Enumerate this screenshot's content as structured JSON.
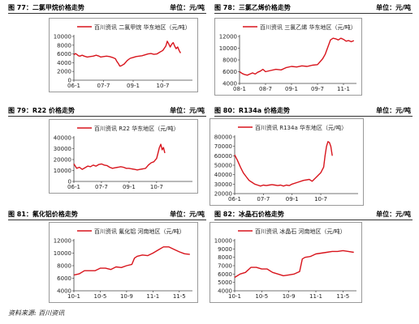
{
  "unit_text": "单位：元/吨",
  "colors": {
    "line": "#d8141c",
    "axis": "#444444",
    "text": "#222222"
  },
  "source": "资料来源: 百川资讯",
  "chart_data": [
    {
      "type": "line",
      "figure_title": "图 77：二氯甲烷价格走势",
      "legend": "百川资讯 二氯甲烷 华东地区（元/吨）",
      "ylim": [
        0,
        10000
      ],
      "yticks": [
        0,
        2000,
        4000,
        6000,
        8000,
        10000
      ],
      "xlim": [
        0,
        4
      ],
      "xticks": [
        0,
        1,
        2,
        3
      ],
      "xtick_labels": [
        "06-1",
        "07-7",
        "09-1",
        "10-7"
      ],
      "x": [
        0,
        0.05,
        0.1,
        0.15,
        0.2,
        0.28,
        0.35,
        0.45,
        0.55,
        0.65,
        0.75,
        0.85,
        0.9,
        1.0,
        1.1,
        1.2,
        1.3,
        1.4,
        1.45,
        1.5,
        1.55,
        1.6,
        1.7,
        1.8,
        1.9,
        2.0,
        2.1,
        2.2,
        2.3,
        2.4,
        2.5,
        2.6,
        2.7,
        2.8,
        2.9,
        3.0,
        3.1,
        3.15,
        3.2,
        3.25,
        3.3,
        3.35,
        3.4,
        3.45,
        3.5,
        3.55,
        3.6
      ],
      "y": [
        5800,
        6100,
        5900,
        5600,
        5500,
        5700,
        5500,
        5300,
        5400,
        5500,
        5700,
        5500,
        5300,
        5400,
        5500,
        5400,
        5200,
        4900,
        4300,
        3800,
        3200,
        3300,
        3700,
        4500,
        5000,
        5200,
        5400,
        5500,
        5600,
        5800,
        6000,
        6100,
        5900,
        6000,
        6400,
        6800,
        7800,
        8900,
        8300,
        7600,
        8200,
        8600,
        7800,
        7200,
        7600,
        6800,
        6200
      ]
    },
    {
      "type": "line",
      "figure_title": "图 78：三氯乙烯价格走势",
      "legend": "百川资讯 三氯乙烯 华东地区（元/吨）",
      "ylim": [
        4000,
        12000
      ],
      "yticks": [
        4000,
        6000,
        8000,
        10000,
        12000
      ],
      "xlim": [
        0,
        4.5
      ],
      "xticks": [
        0,
        1,
        2,
        3,
        4
      ],
      "xtick_labels": [
        "08-1",
        "08-7",
        "09-1",
        "09-7",
        "11-1"
      ],
      "x": [
        0,
        0.1,
        0.2,
        0.3,
        0.4,
        0.5,
        0.6,
        0.7,
        0.8,
        0.9,
        1.0,
        1.2,
        1.4,
        1.6,
        1.8,
        2.0,
        2.2,
        2.4,
        2.6,
        2.8,
        3.0,
        3.2,
        3.3,
        3.4,
        3.5,
        3.6,
        3.7,
        3.8,
        3.9,
        4.0,
        4.1,
        4.2,
        4.3,
        4.4
      ],
      "y": [
        6000,
        5700,
        5500,
        5400,
        5600,
        5800,
        5600,
        5900,
        6100,
        6400,
        6000,
        6200,
        6400,
        6300,
        6700,
        6900,
        6800,
        7000,
        6900,
        7100,
        7200,
        8200,
        9000,
        10200,
        11400,
        11700,
        11600,
        11400,
        11700,
        11500,
        11200,
        11300,
        11100,
        11300
      ]
    },
    {
      "type": "line",
      "figure_title": "图 79：R22 价格走势",
      "legend": "百川资讯 R22 华东地区（元/吨）",
      "ylim": [
        0,
        40000
      ],
      "yticks": [
        0,
        10000,
        20000,
        30000,
        40000
      ],
      "xlim": [
        0,
        4.3
      ],
      "xticks": [
        0,
        1,
        2,
        3
      ],
      "xtick_labels": [
        "06-1",
        "07-7",
        "09-1",
        "10-7"
      ],
      "x": [
        0,
        0.1,
        0.2,
        0.3,
        0.4,
        0.5,
        0.6,
        0.7,
        0.8,
        0.9,
        1.0,
        1.1,
        1.2,
        1.3,
        1.4,
        1.5,
        1.6,
        1.7,
        1.8,
        1.9,
        2.0,
        2.1,
        2.2,
        2.3,
        2.4,
        2.5,
        2.6,
        2.7,
        2.8,
        2.9,
        3.0,
        3.05,
        3.1,
        3.15,
        3.2,
        3.25,
        3.3
      ],
      "y": [
        16000,
        12000,
        13000,
        11000,
        12500,
        14000,
        13500,
        15000,
        14000,
        15500,
        16000,
        15000,
        14500,
        13000,
        12000,
        12500,
        13000,
        13500,
        13000,
        12000,
        12000,
        11500,
        11000,
        10500,
        11000,
        11500,
        12000,
        15000,
        17000,
        18000,
        21000,
        26000,
        31000,
        34000,
        29000,
        31000,
        26000
      ]
    },
    {
      "type": "line",
      "figure_title": "图 80：R134a 价格走势",
      "legend": "百川资讯 R134a 华东地区（元/吨）",
      "ylim": [
        20000,
        80000
      ],
      "yticks": [
        20000,
        30000,
        40000,
        50000,
        60000,
        70000,
        80000
      ],
      "xlim": [
        0,
        4.3
      ],
      "xticks": [
        0,
        1,
        2,
        3
      ],
      "xtick_labels": [
        "06-1",
        "07-7",
        "09-1",
        "10-7"
      ],
      "x": [
        0,
        0.1,
        0.2,
        0.3,
        0.4,
        0.5,
        0.6,
        0.7,
        0.8,
        0.9,
        1.0,
        1.1,
        1.2,
        1.3,
        1.4,
        1.5,
        1.6,
        1.7,
        1.8,
        1.9,
        2.0,
        2.2,
        2.4,
        2.6,
        2.7,
        2.8,
        2.9,
        3.0,
        3.1,
        3.15,
        3.2,
        3.25,
        3.3,
        3.35,
        3.4
      ],
      "y": [
        61000,
        55000,
        48000,
        42000,
        38000,
        34000,
        32000,
        30000,
        29000,
        28000,
        29000,
        28500,
        29000,
        29500,
        29000,
        28500,
        29000,
        28000,
        29000,
        28500,
        30000,
        32000,
        34000,
        35000,
        33000,
        36000,
        39000,
        42000,
        48000,
        60000,
        70000,
        75000,
        74000,
        70000,
        60000
      ]
    },
    {
      "type": "line",
      "figure_title": "图 81：氟化铝价格走势",
      "legend": "百川资讯 氟化铝 河南地区（元/吨）",
      "ylim": [
        4000,
        12000
      ],
      "yticks": [
        4000,
        6000,
        8000,
        10000,
        12000
      ],
      "xlim": [
        0,
        4.5
      ],
      "xticks": [
        0,
        1,
        2,
        3,
        4
      ],
      "xtick_labels": [
        "10-1",
        "10-5",
        "10-9",
        "11-1",
        "11-5"
      ],
      "x": [
        0,
        0.2,
        0.4,
        0.6,
        0.8,
        1.0,
        1.2,
        1.4,
        1.6,
        1.8,
        2.0,
        2.2,
        2.3,
        2.4,
        2.6,
        2.8,
        3.0,
        3.2,
        3.4,
        3.6,
        3.8,
        4.0,
        4.2,
        4.4
      ],
      "y": [
        6500,
        6700,
        7200,
        7200,
        7200,
        7600,
        7600,
        7400,
        7800,
        7700,
        8000,
        8200,
        9200,
        9500,
        9700,
        9600,
        10000,
        10500,
        11000,
        11000,
        10600,
        10200,
        9900,
        9800
      ]
    },
    {
      "type": "line",
      "figure_title": "图 82：冰晶石价格走势",
      "legend": "百川资讯 冰晶石 河南地区（元/吨）",
      "ylim": [
        4000,
        10000
      ],
      "yticks": [
        4000,
        5000,
        6000,
        7000,
        8000,
        9000,
        10000
      ],
      "xlim": [
        0,
        4.5
      ],
      "xticks": [
        0,
        1,
        2,
        3,
        4
      ],
      "xtick_labels": [
        "10-1",
        "10-5",
        "10-9",
        "11-1",
        "11-5"
      ],
      "x": [
        0,
        0.2,
        0.4,
        0.6,
        0.8,
        1.0,
        1.2,
        1.4,
        1.6,
        1.8,
        2.0,
        2.2,
        2.4,
        2.5,
        2.6,
        2.8,
        3.0,
        3.2,
        3.4,
        3.6,
        3.8,
        4.0,
        4.2,
        4.4
      ],
      "y": [
        5600,
        6000,
        6200,
        6800,
        6800,
        6600,
        6600,
        6200,
        6000,
        5800,
        5900,
        6000,
        6300,
        7800,
        8000,
        8100,
        8400,
        8500,
        8600,
        8700,
        8700,
        8800,
        8700,
        8600
      ]
    }
  ]
}
